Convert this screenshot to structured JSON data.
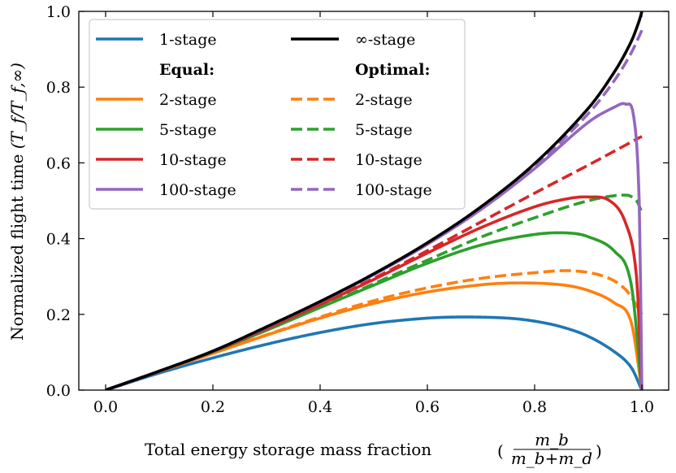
{
  "chart_data": {
    "type": "line",
    "title": "",
    "xlabel": "Total energy storage mass fraction",
    "xlabel_fraction": {
      "numerator": "m_b",
      "denominator": "m_b+m_d"
    },
    "ylabel": "Normalized flight time",
    "ylabel_math": "(T_f/T_f,∞)",
    "xlim": [
      -0.05,
      1.05
    ],
    "ylim": [
      0.0,
      1.0
    ],
    "x_ticks": [
      "0.0",
      "0.2",
      "0.4",
      "0.6",
      "0.8",
      "1.0"
    ],
    "y_ticks": [
      "0.0",
      "0.2",
      "0.4",
      "0.6",
      "0.8",
      "1.0"
    ],
    "legend": {
      "position": "top-left",
      "left_heading": "Equal:",
      "right_heading": "Optimal:",
      "entries": [
        {
          "label": "1-stage",
          "series": "1-stage"
        },
        {
          "label": "∞-stage",
          "series": "inf-stage"
        },
        {
          "label": "2-stage",
          "series": "eq-2"
        },
        {
          "label": "2-stage",
          "series": "opt-2"
        },
        {
          "label": "5-stage",
          "series": "eq-5"
        },
        {
          "label": "5-stage",
          "series": "opt-5"
        },
        {
          "label": "10-stage",
          "series": "eq-10"
        },
        {
          "label": "10-stage",
          "series": "opt-10"
        },
        {
          "label": "100-stage",
          "series": "eq-100"
        },
        {
          "label": "100-stage",
          "series": "opt-100"
        }
      ]
    },
    "series": [
      {
        "id": "1-stage",
        "name": "1-stage",
        "color": "#1f77b4",
        "style": "solid",
        "model": "stages",
        "n": 1
      },
      {
        "id": "inf-stage",
        "name": "∞-stage",
        "color": "#000000",
        "style": "solid",
        "model": "infinite"
      },
      {
        "id": "eq-2",
        "name": "Equal 2-stage",
        "color": "#ff7f0e",
        "style": "solid",
        "model": "stages",
        "n": 2
      },
      {
        "id": "eq-5",
        "name": "Equal 5-stage",
        "color": "#2ca02c",
        "style": "solid",
        "model": "stages",
        "n": 5
      },
      {
        "id": "eq-10",
        "name": "Equal 10-stage",
        "color": "#d62728",
        "style": "solid",
        "model": "stages",
        "n": 10
      },
      {
        "id": "eq-100",
        "name": "Equal 100-stage",
        "color": "#9467bd",
        "style": "solid",
        "model": "stages",
        "n": 100
      },
      {
        "id": "opt-2",
        "name": "Optimal 2-stage",
        "color": "#ff7f0e",
        "style": "dashed",
        "model": "optimal",
        "end_value": 0.2,
        "peak": [
          0.87,
          0.315
        ]
      },
      {
        "id": "opt-5",
        "name": "Optimal 5-stage",
        "color": "#2ca02c",
        "style": "dashed",
        "model": "optimal",
        "end_value": 0.47,
        "peak": [
          0.97,
          0.515
        ]
      },
      {
        "id": "opt-10",
        "name": "Optimal 10-stage",
        "color": "#d62728",
        "style": "dashed",
        "model": "optimal",
        "end_value": 0.67,
        "peak": [
          1.0,
          0.67
        ]
      },
      {
        "id": "opt-100",
        "name": "Optimal 100-stage",
        "color": "#9467bd",
        "style": "dashed",
        "model": "optimal",
        "end_value": 0.95,
        "peak": [
          1.0,
          0.95
        ]
      }
    ]
  }
}
